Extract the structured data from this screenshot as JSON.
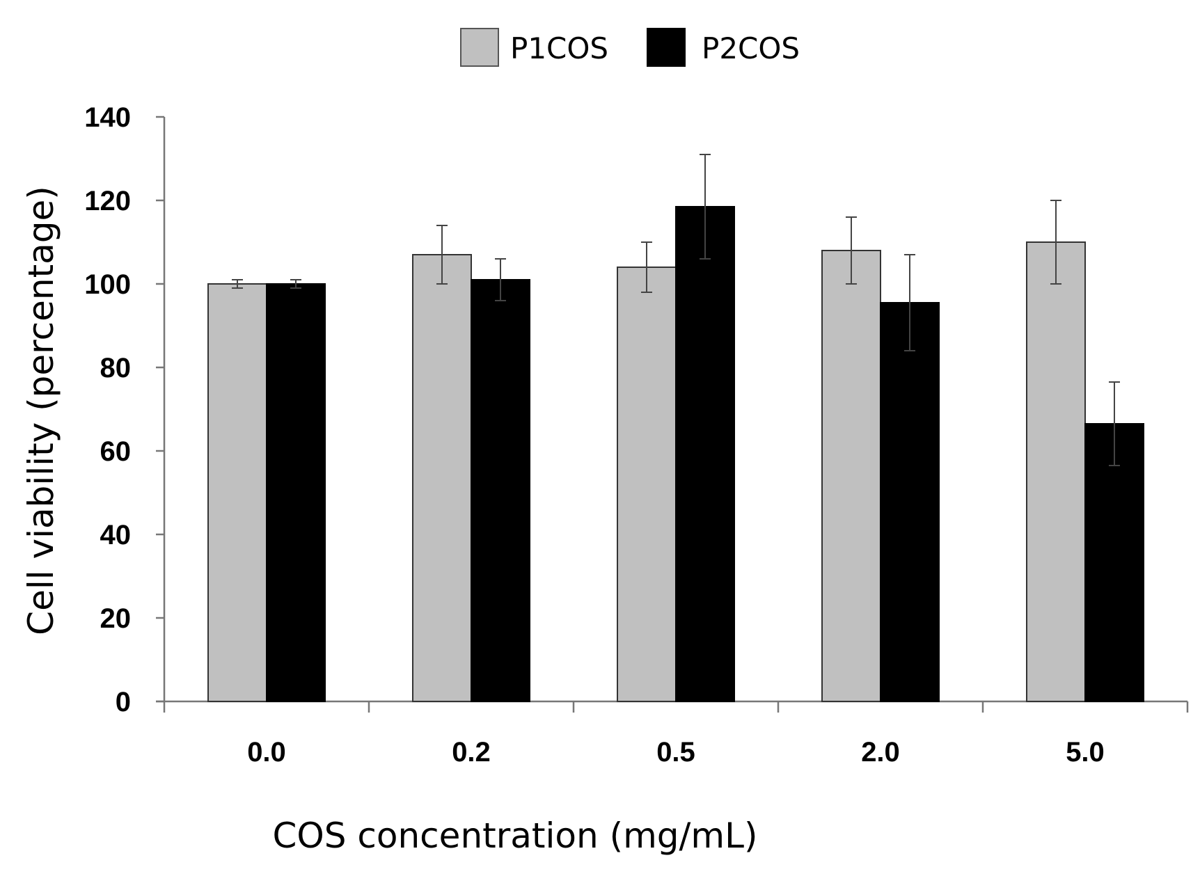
{
  "chart_data": {
    "type": "bar",
    "title": "",
    "xlabel": "COS concentration (mg/mL)",
    "ylabel": "Cell viability (percentage)",
    "categories": [
      "0.0",
      "0.2",
      "0.5",
      "2.0",
      "5.0"
    ],
    "ylim": [
      0,
      140
    ],
    "yticks": [
      "0",
      "20",
      "40",
      "60",
      "80",
      "100",
      "120",
      "140"
    ],
    "grid": false,
    "legend_position": "top-center",
    "series": [
      {
        "name": "P1COS",
        "color": "#c0c0c0",
        "values": [
          100,
          107,
          104,
          108,
          110
        ],
        "errors": [
          1,
          7,
          6,
          8,
          10
        ]
      },
      {
        "name": "P2COS",
        "color": "#000000",
        "values": [
          100,
          101,
          118.5,
          95.5,
          66.5
        ],
        "errors": [
          1,
          5,
          12.5,
          11.5,
          10
        ]
      }
    ]
  }
}
